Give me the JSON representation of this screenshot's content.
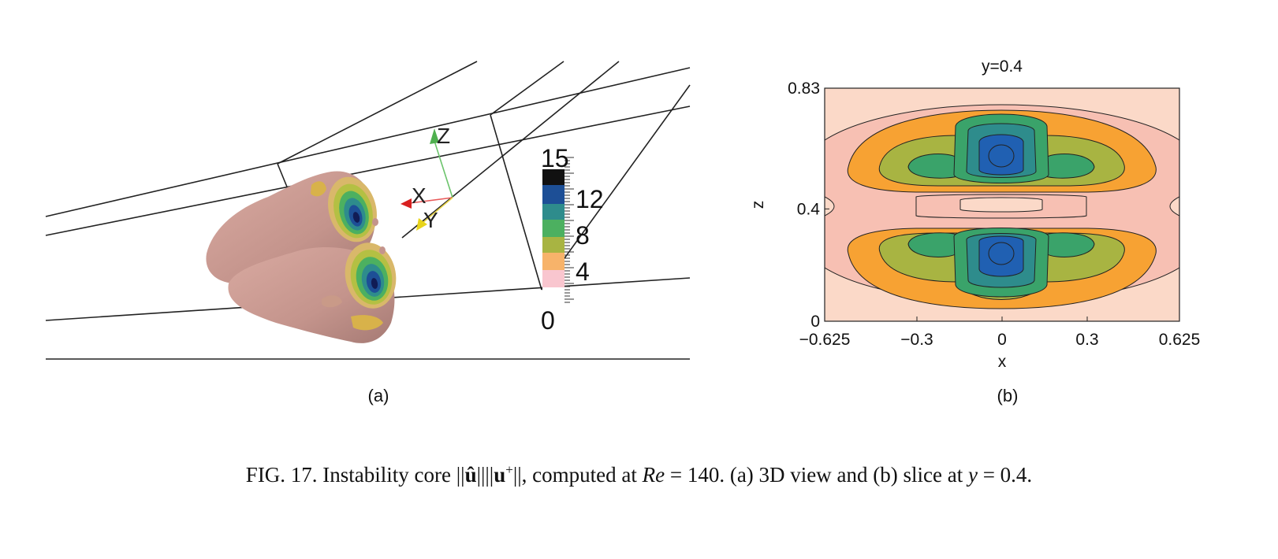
{
  "panel_a": {
    "label": "(a)",
    "axes": {
      "x": "X",
      "y": "Y",
      "z": "Z"
    },
    "colorbar_ticks": [
      "15",
      "12",
      "8",
      "4",
      "0"
    ]
  },
  "panel_b": {
    "label": "(b)",
    "title": "y=0.4",
    "xlabel": "x",
    "ylabel": "z"
  },
  "chart_data": {
    "type": "heatmap",
    "title": "y=0.4",
    "xlabel": "x",
    "ylabel": "z",
    "x_ticks": [
      "−0.625",
      "−0.3",
      "0",
      "0.3",
      "0.625"
    ],
    "y_ticks": [
      "0",
      "0.4",
      "0.83"
    ],
    "xlim": [
      -0.625,
      0.625
    ],
    "ylim": [
      0,
      0.83
    ],
    "grid": false,
    "colors": {
      "level0": "#fbd9c8",
      "level1": "#f7c0b3",
      "level2": "#f7a233",
      "level3": "#a8b442",
      "level4": "#3aa36a",
      "level5": "#2e8c8c",
      "level6": "#2060b2"
    }
  },
  "caption": {
    "prefix": "FIG. 17.  Instability core ||",
    "u_hat": "û",
    "middle": "||||",
    "u_plus": "u",
    "sup": "+",
    "after_norm": "||, computed at ",
    "re_var": "Re",
    "re_value": " = 140. (a) 3D view and (b) slice at ",
    "y_var": "y",
    "y_value": " = 0.4."
  }
}
